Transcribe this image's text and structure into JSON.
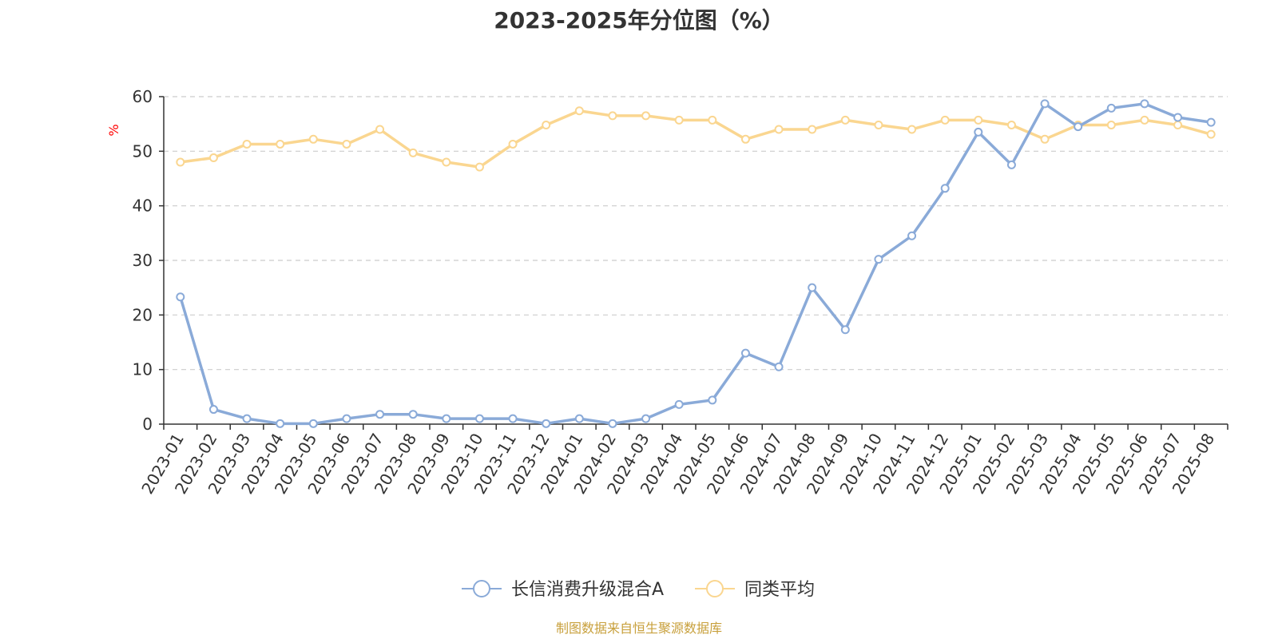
{
  "chart_data": {
    "type": "line",
    "title": "2023-2025年分位图（%）",
    "ylabel": "%",
    "xlabel": "",
    "ylim": [
      0,
      60
    ],
    "yticks": [
      0,
      10,
      20,
      30,
      40,
      50,
      60
    ],
    "grid": true,
    "legend_position": "bottom-center",
    "categories": [
      "2023-01",
      "2023-02",
      "2023-03",
      "2023-04",
      "2023-05",
      "2023-06",
      "2023-07",
      "2023-08",
      "2023-09",
      "2023-10",
      "2023-11",
      "2023-12",
      "2024-01",
      "2024-02",
      "2024-03",
      "2024-04",
      "2024-05",
      "2024-06",
      "2024-07",
      "2024-08",
      "2024-09",
      "2024-10",
      "2024-11",
      "2024-12",
      "2025-01",
      "2025-02",
      "2025-03",
      "2025-04",
      "2025-05",
      "2025-06",
      "2025-07",
      "2025-08"
    ],
    "series": [
      {
        "name": "长信消费升级混合A",
        "color": "#8aaad8",
        "values": [
          23.3,
          2.7,
          1.0,
          0.1,
          0.1,
          1.0,
          1.8,
          1.8,
          1.0,
          1.0,
          1.0,
          0.1,
          1.0,
          0.1,
          1.0,
          3.6,
          4.4,
          13.0,
          10.5,
          25.0,
          17.3,
          30.2,
          34.5,
          43.2,
          53.5,
          47.5,
          58.7,
          54.5,
          57.9,
          58.7,
          56.2,
          55.3
        ]
      },
      {
        "name": "同类平均",
        "color": "#fad690",
        "values": [
          48.0,
          48.8,
          51.3,
          51.3,
          52.2,
          51.3,
          54.0,
          49.7,
          48.0,
          47.1,
          51.3,
          54.8,
          57.4,
          56.5,
          56.5,
          55.7,
          55.7,
          52.2,
          54.0,
          54.0,
          55.7,
          54.8,
          54.0,
          55.7,
          55.7,
          54.8,
          52.2,
          54.8,
          54.8,
          55.7,
          54.8,
          53.1
        ]
      }
    ],
    "source": "制图数据来自恒生聚源数据库"
  }
}
